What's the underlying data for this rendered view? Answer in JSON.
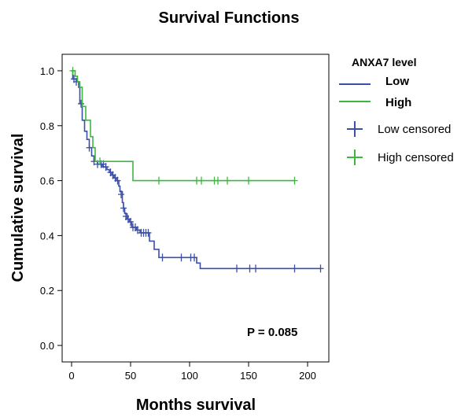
{
  "chart_data": {
    "type": "line",
    "title": "Survival Functions",
    "xlabel": "Months survival",
    "ylabel": "Cumulative survival",
    "xlim": [
      -8,
      218
    ],
    "ylim": [
      -0.06,
      1.06
    ],
    "xticks": [
      0,
      50,
      100,
      150,
      200
    ],
    "yticks": [
      0.0,
      0.2,
      0.4,
      0.6,
      0.8,
      1.0
    ],
    "ytick_labels": [
      "0.0",
      "0.2",
      "0.4",
      "0.6",
      "0.8",
      "1.0"
    ],
    "legend_title": "ANXA7 level",
    "legend_position": "right",
    "annotation": "P = 0.085",
    "series": [
      {
        "name": "Low",
        "color": "#3a4fa8",
        "steps": [
          [
            0,
            1.0
          ],
          [
            1,
            0.97
          ],
          [
            4,
            0.96
          ],
          [
            6,
            0.94
          ],
          [
            7,
            0.88
          ],
          [
            9,
            0.82
          ],
          [
            11,
            0.78
          ],
          [
            13,
            0.75
          ],
          [
            15,
            0.72
          ],
          [
            17,
            0.69
          ],
          [
            19,
            0.67
          ],
          [
            22,
            0.66
          ],
          [
            26,
            0.65
          ],
          [
            30,
            0.64
          ],
          [
            32,
            0.63
          ],
          [
            34,
            0.62
          ],
          [
            36,
            0.61
          ],
          [
            38,
            0.6
          ],
          [
            40,
            0.58
          ],
          [
            41,
            0.56
          ],
          [
            43,
            0.52
          ],
          [
            44,
            0.5
          ],
          [
            45,
            0.48
          ],
          [
            47,
            0.46
          ],
          [
            49,
            0.45
          ],
          [
            51,
            0.43
          ],
          [
            55,
            0.42
          ],
          [
            58,
            0.41
          ],
          [
            66,
            0.38
          ],
          [
            70,
            0.35
          ],
          [
            74,
            0.32
          ],
          [
            106,
            0.3
          ],
          [
            109,
            0.28
          ],
          [
            211,
            0.28
          ]
        ],
        "censored": [
          [
            2,
            0.97
          ],
          [
            4,
            0.96
          ],
          [
            8,
            0.88
          ],
          [
            15,
            0.72
          ],
          [
            19,
            0.67
          ],
          [
            22,
            0.66
          ],
          [
            25,
            0.66
          ],
          [
            27,
            0.66
          ],
          [
            29,
            0.65
          ],
          [
            33,
            0.63
          ],
          [
            35,
            0.62
          ],
          [
            37,
            0.61
          ],
          [
            39,
            0.6
          ],
          [
            42,
            0.55
          ],
          [
            44,
            0.5
          ],
          [
            46,
            0.47
          ],
          [
            48,
            0.46
          ],
          [
            50,
            0.45
          ],
          [
            52,
            0.43
          ],
          [
            54,
            0.43
          ],
          [
            56,
            0.42
          ],
          [
            59,
            0.41
          ],
          [
            61,
            0.41
          ],
          [
            63,
            0.41
          ],
          [
            65,
            0.41
          ],
          [
            77,
            0.32
          ],
          [
            93,
            0.32
          ],
          [
            101,
            0.32
          ],
          [
            104,
            0.32
          ],
          [
            140,
            0.28
          ],
          [
            151,
            0.28
          ],
          [
            156,
            0.28
          ],
          [
            189,
            0.28
          ],
          [
            211,
            0.28
          ]
        ]
      },
      {
        "name": "High",
        "color": "#3db83f",
        "steps": [
          [
            0,
            1.0
          ],
          [
            3,
            0.98
          ],
          [
            5,
            0.96
          ],
          [
            7,
            0.94
          ],
          [
            9,
            0.87
          ],
          [
            12,
            0.82
          ],
          [
            16,
            0.76
          ],
          [
            18,
            0.72
          ],
          [
            20,
            0.67
          ],
          [
            52,
            0.6
          ],
          [
            189,
            0.6
          ]
        ],
        "censored": [
          [
            1,
            1.0
          ],
          [
            24,
            0.67
          ],
          [
            74,
            0.6
          ],
          [
            106,
            0.6
          ],
          [
            110,
            0.6
          ],
          [
            121,
            0.6
          ],
          [
            124,
            0.6
          ],
          [
            132,
            0.6
          ],
          [
            150,
            0.6
          ],
          [
            189,
            0.6
          ]
        ]
      }
    ],
    "legend_entries": [
      "Low",
      "High",
      "Low censored",
      "High censored"
    ]
  }
}
